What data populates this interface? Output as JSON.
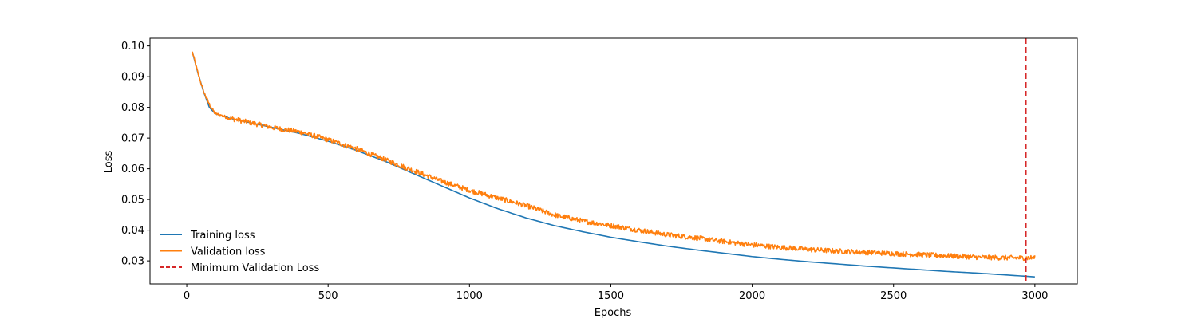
{
  "chart_data": {
    "type": "line",
    "title": "",
    "xlabel": "Epochs",
    "ylabel": "Loss",
    "xlim": [
      -130,
      3150
    ],
    "ylim": [
      0.0225,
      0.1025
    ],
    "xticks": [
      0,
      500,
      1000,
      1500,
      2000,
      2500,
      3000
    ],
    "xtick_labels": [
      "0",
      "500",
      "1000",
      "1500",
      "2000",
      "2500",
      "3000"
    ],
    "yticks": [
      0.03,
      0.04,
      0.05,
      0.06,
      0.07,
      0.08,
      0.09,
      0.1
    ],
    "ytick_labels": [
      "0.03",
      "0.04",
      "0.05",
      "0.06",
      "0.07",
      "0.08",
      "0.09",
      "0.10"
    ],
    "grid": false,
    "legend_position": "lower-left",
    "series": [
      {
        "name": "Training loss",
        "color": "#1f77b4",
        "style": "solid",
        "x": [
          20,
          40,
          60,
          80,
          100,
          150,
          200,
          300,
          400,
          500,
          600,
          700,
          800,
          900,
          1000,
          1100,
          1200,
          1300,
          1400,
          1500,
          1600,
          1700,
          1800,
          1900,
          2000,
          2100,
          2200,
          2300,
          2400,
          2500,
          2600,
          2700,
          2800,
          2900,
          3000
        ],
        "y": [
          0.098,
          0.091,
          0.085,
          0.08,
          0.078,
          0.0765,
          0.0755,
          0.0735,
          0.0715,
          0.069,
          0.066,
          0.0625,
          0.0585,
          0.0545,
          0.0505,
          0.047,
          0.044,
          0.0415,
          0.0395,
          0.0377,
          0.0362,
          0.0348,
          0.0336,
          0.0325,
          0.0314,
          0.0305,
          0.0297,
          0.029,
          0.0283,
          0.0277,
          0.0271,
          0.0265,
          0.026,
          0.0254,
          0.0248
        ]
      },
      {
        "name": "Validation loss",
        "color": "#ff7f0e",
        "style": "solid",
        "noise": 0.0008,
        "x": [
          20,
          40,
          60,
          80,
          100,
          150,
          200,
          300,
          400,
          500,
          600,
          700,
          800,
          900,
          1000,
          1100,
          1200,
          1300,
          1400,
          1500,
          1600,
          1700,
          1800,
          1900,
          2000,
          2100,
          2200,
          2300,
          2400,
          2500,
          2600,
          2700,
          2800,
          2900,
          3000
        ],
        "y": [
          0.098,
          0.091,
          0.085,
          0.081,
          0.078,
          0.0765,
          0.0755,
          0.0735,
          0.072,
          0.0695,
          0.0665,
          0.063,
          0.0595,
          0.056,
          0.053,
          0.0505,
          0.048,
          0.045,
          0.043,
          0.0415,
          0.04,
          0.0385,
          0.0375,
          0.0363,
          0.0352,
          0.0344,
          0.0337,
          0.0332,
          0.0328,
          0.0324,
          0.032,
          0.0316,
          0.0312,
          0.031,
          0.031
        ]
      }
    ],
    "vline": {
      "name": "Minimum Validation Loss",
      "x": 2968,
      "color": "#d62728",
      "style": "dashed"
    }
  }
}
